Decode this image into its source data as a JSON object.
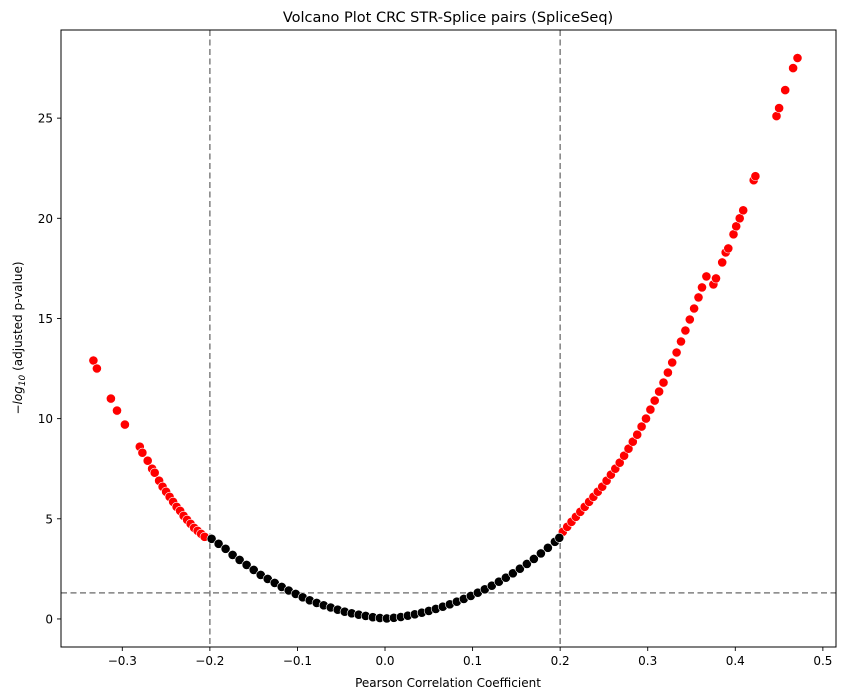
{
  "chart_data": {
    "type": "scatter",
    "title": "Volcano Plot CRC STR-Splice pairs (SpliceSeq)",
    "xlabel": "Pearson Correlation Coefficient",
    "ylabel": {
      "prefix": "−",
      "log": "log",
      "subscript": "10",
      "suffix": " (adjusted p-value)"
    },
    "xlim": [
      -0.37,
      0.515
    ],
    "ylim": [
      -1.4,
      29.4
    ],
    "xticks": [
      {
        "value": -0.3,
        "label": "−0.3"
      },
      {
        "value": -0.2,
        "label": "−0.2"
      },
      {
        "value": -0.1,
        "label": "−0.1"
      },
      {
        "value": 0.0,
        "label": "0.0"
      },
      {
        "value": 0.1,
        "label": "0.1"
      },
      {
        "value": 0.2,
        "label": "0.2"
      },
      {
        "value": 0.3,
        "label": "0.3"
      },
      {
        "value": 0.4,
        "label": "0.4"
      },
      {
        "value": 0.5,
        "label": "0.5"
      }
    ],
    "yticks": [
      {
        "value": 0,
        "label": "0"
      },
      {
        "value": 5,
        "label": "5"
      },
      {
        "value": 10,
        "label": "10"
      },
      {
        "value": 15,
        "label": "15"
      },
      {
        "value": 20,
        "label": "20"
      },
      {
        "value": 25,
        "label": "25"
      }
    ],
    "thresholds": {
      "vertical": [
        -0.2,
        0.2
      ],
      "horizontal": [
        1.3
      ],
      "color": "#808080",
      "style": "dashed"
    },
    "grid": false,
    "legend": "none",
    "marker_edge_color": "#ffffff",
    "series": [
      {
        "color": "#ff0000",
        "points": [
          [
            -0.333,
            12.9
          ],
          [
            -0.329,
            12.5
          ],
          [
            -0.313,
            11.0
          ],
          [
            -0.306,
            10.4
          ],
          [
            -0.297,
            9.7
          ],
          [
            -0.28,
            8.6
          ],
          [
            -0.277,
            8.3
          ],
          [
            -0.271,
            7.9
          ],
          [
            -0.266,
            7.5
          ],
          [
            -0.263,
            7.3
          ],
          [
            -0.258,
            6.9
          ],
          [
            -0.254,
            6.6
          ],
          [
            -0.25,
            6.35
          ],
          [
            -0.246,
            6.1
          ],
          [
            -0.242,
            5.85
          ],
          [
            -0.238,
            5.6
          ],
          [
            -0.234,
            5.4
          ],
          [
            -0.23,
            5.15
          ],
          [
            -0.226,
            4.95
          ],
          [
            -0.222,
            4.75
          ],
          [
            -0.218,
            4.55
          ],
          [
            -0.214,
            4.4
          ],
          [
            -0.21,
            4.25
          ],
          [
            -0.206,
            4.1
          ],
          [
            0.203,
            4.35
          ],
          [
            0.208,
            4.6
          ],
          [
            0.213,
            4.85
          ],
          [
            0.218,
            5.1
          ],
          [
            0.223,
            5.35
          ],
          [
            0.228,
            5.6
          ],
          [
            0.233,
            5.85
          ],
          [
            0.238,
            6.1
          ],
          [
            0.243,
            6.35
          ],
          [
            0.248,
            6.6
          ],
          [
            0.253,
            6.9
          ],
          [
            0.258,
            7.2
          ],
          [
            0.263,
            7.5
          ],
          [
            0.268,
            7.8
          ],
          [
            0.273,
            8.15
          ],
          [
            0.278,
            8.5
          ],
          [
            0.283,
            8.85
          ],
          [
            0.288,
            9.2
          ],
          [
            0.293,
            9.6
          ],
          [
            0.298,
            10.0
          ],
          [
            0.303,
            10.45
          ],
          [
            0.308,
            10.9
          ],
          [
            0.313,
            11.35
          ],
          [
            0.318,
            11.8
          ],
          [
            0.323,
            12.3
          ],
          [
            0.328,
            12.8
          ],
          [
            0.333,
            13.3
          ],
          [
            0.338,
            13.85
          ],
          [
            0.343,
            14.4
          ],
          [
            0.348,
            14.95
          ],
          [
            0.353,
            15.5
          ],
          [
            0.358,
            16.05
          ],
          [
            0.362,
            16.55
          ],
          [
            0.367,
            17.1
          ],
          [
            0.375,
            16.7
          ],
          [
            0.378,
            17.0
          ],
          [
            0.385,
            17.8
          ],
          [
            0.389,
            18.3
          ],
          [
            0.392,
            18.5
          ],
          [
            0.398,
            19.2
          ],
          [
            0.401,
            19.6
          ],
          [
            0.405,
            20.0
          ],
          [
            0.409,
            20.4
          ],
          [
            0.421,
            21.9
          ],
          [
            0.423,
            22.1
          ],
          [
            0.447,
            25.1
          ],
          [
            0.45,
            25.5
          ],
          [
            0.457,
            26.4
          ],
          [
            0.466,
            27.5
          ],
          [
            0.471,
            28.0
          ]
        ]
      },
      {
        "color": "#000000",
        "points": [
          [
            -0.198,
            4.0
          ],
          [
            -0.19,
            3.75
          ],
          [
            -0.182,
            3.5
          ],
          [
            -0.174,
            3.2
          ],
          [
            -0.166,
            2.95
          ],
          [
            -0.158,
            2.7
          ],
          [
            -0.15,
            2.45
          ],
          [
            -0.142,
            2.2
          ],
          [
            -0.134,
            2.0
          ],
          [
            -0.126,
            1.8
          ],
          [
            -0.118,
            1.6
          ],
          [
            -0.11,
            1.42
          ],
          [
            -0.102,
            1.25
          ],
          [
            -0.094,
            1.08
          ],
          [
            -0.086,
            0.93
          ],
          [
            -0.078,
            0.8
          ],
          [
            -0.07,
            0.68
          ],
          [
            -0.062,
            0.57
          ],
          [
            -0.054,
            0.46
          ],
          [
            -0.046,
            0.36
          ],
          [
            -0.038,
            0.28
          ],
          [
            -0.03,
            0.21
          ],
          [
            -0.022,
            0.15
          ],
          [
            -0.014,
            0.09
          ],
          [
            -0.006,
            0.05
          ],
          [
            0.002,
            0.03
          ],
          [
            0.01,
            0.06
          ],
          [
            0.018,
            0.1
          ],
          [
            0.026,
            0.16
          ],
          [
            0.034,
            0.23
          ],
          [
            0.042,
            0.31
          ],
          [
            0.05,
            0.4
          ],
          [
            0.058,
            0.5
          ],
          [
            0.066,
            0.61
          ],
          [
            0.074,
            0.73
          ],
          [
            0.082,
            0.86
          ],
          [
            0.09,
            1.0
          ],
          [
            0.098,
            1.15
          ],
          [
            0.106,
            1.31
          ],
          [
            0.114,
            1.48
          ],
          [
            0.122,
            1.66
          ],
          [
            0.13,
            1.86
          ],
          [
            0.138,
            2.06
          ],
          [
            0.146,
            2.28
          ],
          [
            0.154,
            2.51
          ],
          [
            0.162,
            2.75
          ],
          [
            0.17,
            3.0
          ],
          [
            0.178,
            3.27
          ],
          [
            0.186,
            3.55
          ],
          [
            0.194,
            3.85
          ],
          [
            0.199,
            4.05
          ]
        ]
      }
    ]
  }
}
